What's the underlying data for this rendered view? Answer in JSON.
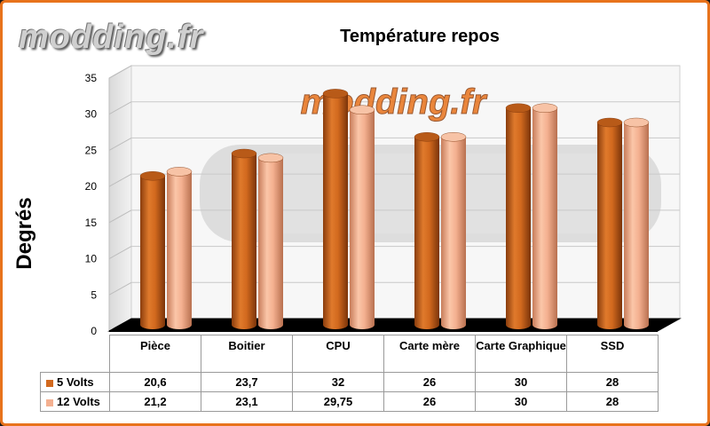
{
  "watermark": "modding.fr",
  "chart_data": {
    "type": "bar",
    "title": "Température repos",
    "ylabel": "Degrés",
    "xlabel": "",
    "ylim": [
      0,
      35
    ],
    "yticks": [
      0,
      5,
      10,
      15,
      20,
      25,
      30,
      35
    ],
    "grid": true,
    "legend": "data-table",
    "categories": [
      "Pièce",
      "Boitier",
      "CPU",
      "Carte mère",
      "Carte Graphique",
      "SSD"
    ],
    "series": [
      {
        "name": "5 Volts",
        "color": "#d2691e",
        "values": [
          20.6,
          23.7,
          32,
          26,
          30,
          28
        ],
        "labels": [
          "20,6",
          "23,7",
          "32",
          "26",
          "30",
          "28"
        ]
      },
      {
        "name": "12 Volts",
        "color": "#f4b090",
        "values": [
          21.2,
          23.1,
          29.75,
          26,
          30,
          28
        ],
        "labels": [
          "21,2",
          "23,1",
          "29,75",
          "26",
          "30",
          "28"
        ]
      }
    ]
  }
}
